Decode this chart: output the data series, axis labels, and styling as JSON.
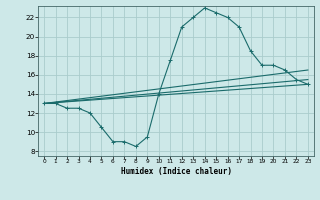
{
  "xlabel": "Humidex (Indice chaleur)",
  "bg_color": "#cde8e8",
  "grid_color": "#aacccc",
  "line_color": "#1a6b6b",
  "xlim": [
    -0.5,
    23.5
  ],
  "ylim": [
    7.5,
    23.2
  ],
  "yticks": [
    8,
    10,
    12,
    14,
    16,
    18,
    20,
    22
  ],
  "xticks": [
    0,
    1,
    2,
    3,
    4,
    5,
    6,
    7,
    8,
    9,
    10,
    11,
    12,
    13,
    14,
    15,
    16,
    17,
    18,
    19,
    20,
    21,
    22,
    23
  ],
  "main_series": {
    "x": [
      0,
      1,
      2,
      3,
      4,
      5,
      6,
      7,
      8,
      9,
      10,
      11,
      12,
      13,
      14,
      15,
      16,
      17,
      18,
      19,
      20,
      21,
      22,
      23
    ],
    "y": [
      13,
      13,
      12.5,
      12.5,
      12,
      10.5,
      9,
      9,
      8.5,
      9.5,
      14,
      17.5,
      21,
      22,
      23,
      22.5,
      22,
      21,
      18.5,
      17,
      17,
      16.5,
      15.5,
      15
    ]
  },
  "trend_lines": [
    {
      "x": [
        0,
        23
      ],
      "y": [
        13,
        15.0
      ]
    },
    {
      "x": [
        0,
        23
      ],
      "y": [
        13,
        15.5
      ]
    },
    {
      "x": [
        0,
        23
      ],
      "y": [
        13,
        16.5
      ]
    }
  ]
}
